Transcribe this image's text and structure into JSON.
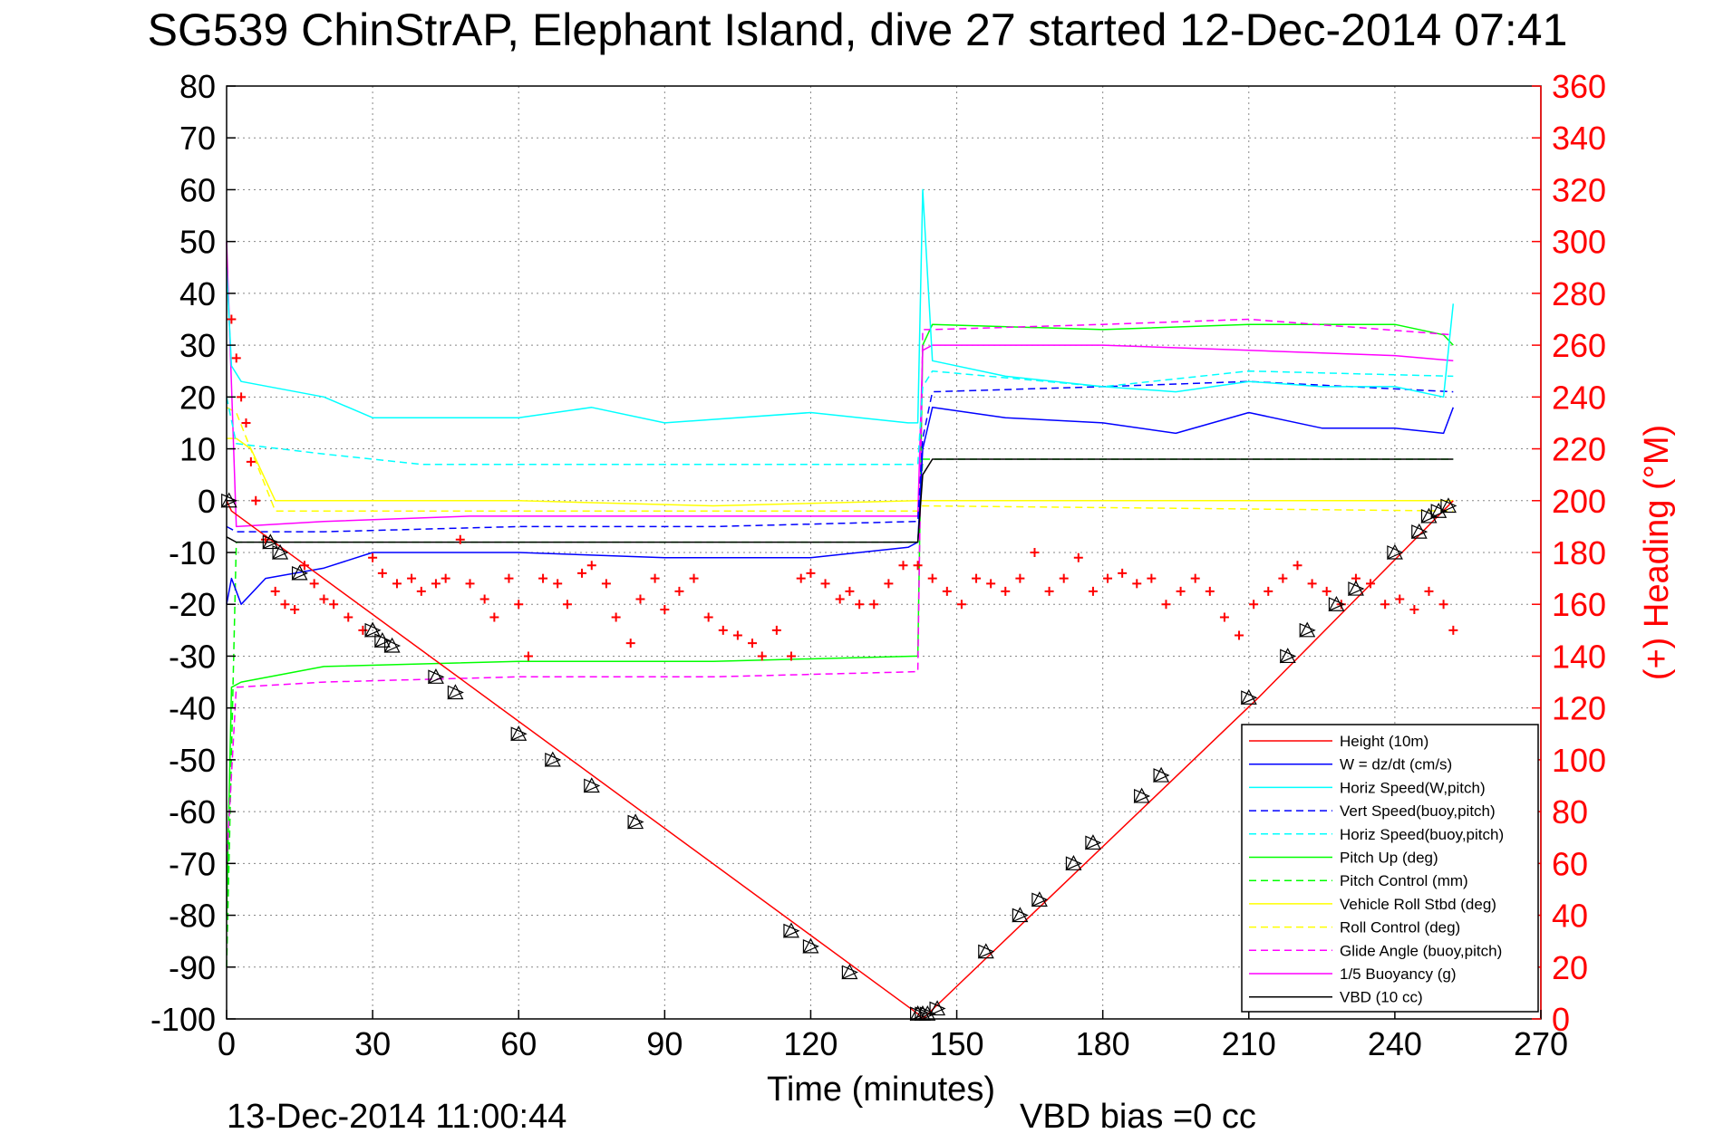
{
  "chart_data": {
    "type": "line",
    "title": "SG539 ChinStrAP, Elephant Island, dive 27 started 12-Dec-2014 07:41",
    "xlabel": "Time (minutes)",
    "ylabel_right": "(+) Heading (°M)",
    "xlim": [
      0,
      270
    ],
    "ylim": [
      -100,
      80
    ],
    "ylim_right": [
      0,
      360
    ],
    "x_ticks": [
      0,
      30,
      60,
      90,
      120,
      150,
      180,
      210,
      240,
      270
    ],
    "y_ticks": [
      -100,
      -90,
      -80,
      -70,
      -60,
      -50,
      -40,
      -30,
      -20,
      -10,
      0,
      10,
      20,
      30,
      40,
      50,
      60,
      70,
      80
    ],
    "y_ticks_right": [
      0,
      20,
      40,
      60,
      80,
      100,
      120,
      140,
      160,
      180,
      200,
      220,
      240,
      260,
      280,
      300,
      320,
      340,
      360
    ],
    "grid": true,
    "legend_position": "bottom-right",
    "colors": {
      "red": "#ff0000",
      "blue": "#0000ff",
      "cyan": "#00ffff",
      "green": "#00ff00",
      "yellow": "#ffff00",
      "magenta": "#ff00ff",
      "black": "#000000"
    },
    "series": [
      {
        "name": "Height (10m)",
        "color": "#ff0000",
        "style": "solid",
        "x": [
          0,
          1,
          142,
          143,
          212,
          252
        ],
        "y": [
          0,
          -2,
          -99,
          -100,
          -38,
          0
        ]
      },
      {
        "name": "W = dz/dt (cm/s)",
        "color": "#0000ff",
        "style": "solid",
        "x": [
          0,
          1,
          3,
          8,
          20,
          30,
          60,
          90,
          120,
          140,
          142,
          143,
          145,
          160,
          180,
          195,
          210,
          225,
          240,
          250,
          252
        ],
        "y": [
          -20,
          -15,
          -20,
          -15,
          -13,
          -10,
          -10,
          -11,
          -11,
          -9,
          -8,
          10,
          18,
          16,
          15,
          13,
          17,
          14,
          14,
          13,
          18
        ]
      },
      {
        "name": "Horiz Speed(W,pitch)",
        "color": "#00ffff",
        "style": "solid",
        "x": [
          0,
          1,
          3,
          20,
          30,
          60,
          75,
          90,
          120,
          140,
          142,
          143,
          145,
          160,
          180,
          195,
          210,
          225,
          240,
          250,
          252
        ],
        "y": [
          45,
          26,
          23,
          20,
          16,
          16,
          18,
          15,
          17,
          15,
          15,
          60,
          27,
          24,
          22,
          21,
          23,
          22,
          22,
          20,
          38
        ]
      },
      {
        "name": "Vert Speed(buoy,pitch)",
        "color": "#0000ff",
        "style": "dashed",
        "x": [
          0,
          2,
          20,
          60,
          100,
          142,
          143,
          145,
          180,
          210,
          252
        ],
        "y": [
          -5,
          -6,
          -6,
          -5,
          -5,
          -4,
          12,
          21,
          22,
          23,
          21
        ]
      },
      {
        "name": "Horiz Speed(buoy,pitch)",
        "color": "#00ffff",
        "style": "dashed",
        "x": [
          0,
          2,
          20,
          40,
          80,
          120,
          142,
          143,
          145,
          180,
          210,
          252
        ],
        "y": [
          20,
          11,
          9,
          7,
          7,
          7,
          7,
          22,
          25,
          22,
          25,
          24
        ]
      },
      {
        "name": "Pitch Up (deg)",
        "color": "#00ff00",
        "style": "solid",
        "x": [
          0,
          1,
          3,
          20,
          60,
          100,
          142,
          143,
          145,
          180,
          210,
          240,
          250,
          252
        ],
        "y": [
          -80,
          -36,
          -35,
          -32,
          -31,
          -31,
          -30,
          30,
          34,
          33,
          34,
          34,
          32,
          30
        ]
      },
      {
        "name": "Pitch Control (mm)",
        "color": "#00ff00",
        "style": "dashed",
        "x": [
          0,
          2,
          142,
          143,
          252
        ],
        "y": [
          -90,
          -8,
          -8,
          8,
          8
        ]
      },
      {
        "name": "Vehicle Roll Stbd (deg)",
        "color": "#ffff00",
        "style": "solid",
        "x": [
          0,
          2,
          5,
          10,
          60,
          100,
          142,
          143,
          180,
          220,
          252
        ],
        "y": [
          12,
          12,
          10,
          0,
          0,
          -1,
          0,
          0,
          0,
          0,
          0
        ]
      },
      {
        "name": "Roll Control (deg)",
        "color": "#ffff00",
        "style": "dashed",
        "x": [
          0,
          2,
          10,
          142,
          143,
          252
        ],
        "y": [
          18,
          17,
          -2,
          -2,
          -1,
          -2
        ]
      },
      {
        "name": "Glide Angle (buoy,pitch)",
        "color": "#ff00ff",
        "style": "dashed",
        "x": [
          0,
          2,
          20,
          60,
          100,
          142,
          143,
          145,
          180,
          210,
          252
        ],
        "y": [
          -70,
          -36,
          -35,
          -34,
          -34,
          -33,
          33,
          33,
          34,
          35,
          32
        ]
      },
      {
        "name": "1/5 Buoyancy (g)",
        "color": "#ff00ff",
        "style": "solid",
        "x": [
          0,
          2,
          20,
          50,
          100,
          142,
          143,
          145,
          180,
          210,
          240,
          252
        ],
        "y": [
          50,
          -5,
          -4,
          -3,
          -3,
          -3,
          29,
          30,
          30,
          29,
          28,
          27
        ]
      },
      {
        "name": "VBD (10 cc)",
        "color": "#000000",
        "style": "solid",
        "x": [
          0,
          2,
          142,
          143,
          145,
          252
        ],
        "y": [
          -7,
          -8,
          -8,
          5,
          8,
          8
        ]
      }
    ],
    "heading_series": {
      "name": "Heading",
      "axis": "right",
      "color": "#ff0000",
      "marker": "+",
      "x": [
        1,
        2,
        3,
        4,
        5,
        6,
        8,
        10,
        12,
        14,
        16,
        18,
        20,
        22,
        25,
        28,
        30,
        32,
        35,
        38,
        40,
        43,
        45,
        48,
        50,
        53,
        55,
        58,
        60,
        62,
        65,
        68,
        70,
        73,
        75,
        78,
        80,
        83,
        85,
        88,
        90,
        93,
        96,
        99,
        102,
        105,
        108,
        110,
        113,
        116,
        118,
        120,
        123,
        126,
        128,
        130,
        133,
        136,
        139,
        142,
        145,
        148,
        151,
        154,
        157,
        160,
        163,
        166,
        169,
        172,
        175,
        178,
        181,
        184,
        187,
        190,
        193,
        196,
        199,
        202,
        205,
        208,
        211,
        214,
        217,
        220,
        223,
        226,
        229,
        232,
        235,
        238,
        241,
        244,
        247,
        250,
        252
      ],
      "y": [
        270,
        255,
        240,
        230,
        215,
        200,
        185,
        165,
        160,
        158,
        175,
        168,
        162,
        160,
        155,
        150,
        178,
        172,
        168,
        170,
        165,
        168,
        170,
        185,
        168,
        162,
        155,
        170,
        160,
        140,
        170,
        168,
        160,
        172,
        175,
        168,
        155,
        145,
        162,
        170,
        158,
        165,
        170,
        155,
        150,
        148,
        145,
        140,
        150,
        140,
        170,
        172,
        168,
        162,
        165,
        160,
        160,
        168,
        175,
        175,
        170,
        165,
        160,
        170,
        168,
        165,
        170,
        180,
        165,
        170,
        178,
        165,
        170,
        172,
        168,
        170,
        160,
        165,
        170,
        165,
        155,
        148,
        160,
        165,
        170,
        175,
        168,
        165,
        160,
        170,
        168,
        160,
        162,
        158,
        165,
        160,
        150
      ]
    },
    "markers": {
      "name": "triangles",
      "color": "#000000",
      "x": [
        0.5,
        9,
        11,
        15,
        30,
        32,
        34,
        43,
        47,
        60,
        67,
        75,
        84,
        116,
        120,
        128,
        142,
        143,
        144,
        146,
        156,
        163,
        167,
        174,
        178,
        188,
        192,
        210,
        218,
        222,
        228,
        232,
        240,
        245,
        247,
        249,
        251
      ],
      "y": [
        0,
        -8,
        -10,
        -14,
        -25,
        -27,
        -28,
        -34,
        -37,
        -45,
        -50,
        -55,
        -62,
        -83,
        -86,
        -91,
        -99,
        -99,
        -99,
        -98,
        -87,
        -80,
        -77,
        -70,
        -66,
        -57,
        -53,
        -38,
        -30,
        -25,
        -20,
        -17,
        -10,
        -6,
        -3,
        -2,
        -1
      ]
    },
    "footer_left": "13-Dec-2014 11:00:44",
    "footer_right": "VBD bias =0 cc"
  }
}
